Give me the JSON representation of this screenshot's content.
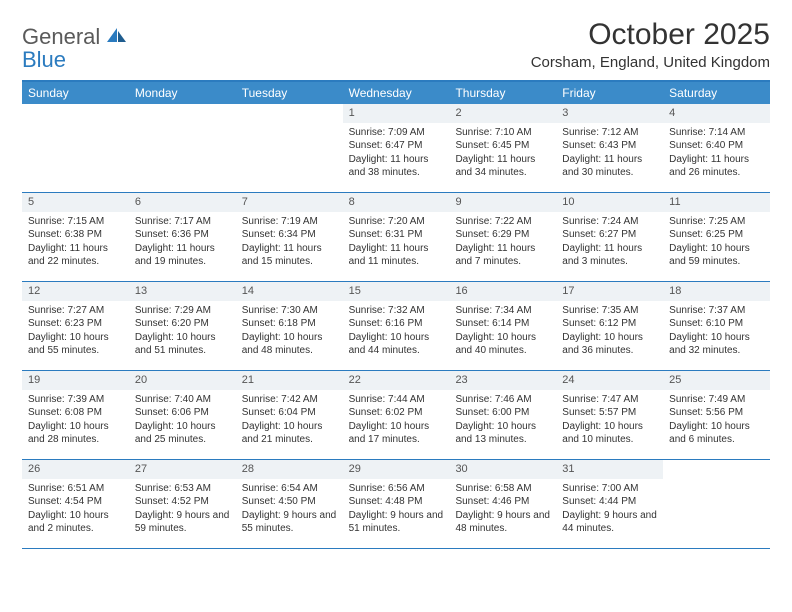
{
  "brand": {
    "part1": "General",
    "part2": "Blue"
  },
  "title": "October 2025",
  "location": "Corsham, England, United Kingdom",
  "colors": {
    "header_bar": "#3b8bc9",
    "rule": "#2b7bbf",
    "daynum_bg": "#eef2f5",
    "text": "#333333",
    "logo_gray": "#5a5a5a",
    "logo_blue": "#2b7bbf",
    "background": "#ffffff"
  },
  "typography": {
    "title_fontsize": 30,
    "location_fontsize": 15,
    "dow_fontsize": 12,
    "body_fontsize": 10,
    "daynum_fontsize": 11,
    "logo_fontsize": 22
  },
  "dow": [
    "Sunday",
    "Monday",
    "Tuesday",
    "Wednesday",
    "Thursday",
    "Friday",
    "Saturday"
  ],
  "weeks": [
    [
      {
        "num": "",
        "sunrise": "",
        "sunset": "",
        "daylight": ""
      },
      {
        "num": "",
        "sunrise": "",
        "sunset": "",
        "daylight": ""
      },
      {
        "num": "",
        "sunrise": "",
        "sunset": "",
        "daylight": ""
      },
      {
        "num": "1",
        "sunrise": "Sunrise: 7:09 AM",
        "sunset": "Sunset: 6:47 PM",
        "daylight": "Daylight: 11 hours and 38 minutes."
      },
      {
        "num": "2",
        "sunrise": "Sunrise: 7:10 AM",
        "sunset": "Sunset: 6:45 PM",
        "daylight": "Daylight: 11 hours and 34 minutes."
      },
      {
        "num": "3",
        "sunrise": "Sunrise: 7:12 AM",
        "sunset": "Sunset: 6:43 PM",
        "daylight": "Daylight: 11 hours and 30 minutes."
      },
      {
        "num": "4",
        "sunrise": "Sunrise: 7:14 AM",
        "sunset": "Sunset: 6:40 PM",
        "daylight": "Daylight: 11 hours and 26 minutes."
      }
    ],
    [
      {
        "num": "5",
        "sunrise": "Sunrise: 7:15 AM",
        "sunset": "Sunset: 6:38 PM",
        "daylight": "Daylight: 11 hours and 22 minutes."
      },
      {
        "num": "6",
        "sunrise": "Sunrise: 7:17 AM",
        "sunset": "Sunset: 6:36 PM",
        "daylight": "Daylight: 11 hours and 19 minutes."
      },
      {
        "num": "7",
        "sunrise": "Sunrise: 7:19 AM",
        "sunset": "Sunset: 6:34 PM",
        "daylight": "Daylight: 11 hours and 15 minutes."
      },
      {
        "num": "8",
        "sunrise": "Sunrise: 7:20 AM",
        "sunset": "Sunset: 6:31 PM",
        "daylight": "Daylight: 11 hours and 11 minutes."
      },
      {
        "num": "9",
        "sunrise": "Sunrise: 7:22 AM",
        "sunset": "Sunset: 6:29 PM",
        "daylight": "Daylight: 11 hours and 7 minutes."
      },
      {
        "num": "10",
        "sunrise": "Sunrise: 7:24 AM",
        "sunset": "Sunset: 6:27 PM",
        "daylight": "Daylight: 11 hours and 3 minutes."
      },
      {
        "num": "11",
        "sunrise": "Sunrise: 7:25 AM",
        "sunset": "Sunset: 6:25 PM",
        "daylight": "Daylight: 10 hours and 59 minutes."
      }
    ],
    [
      {
        "num": "12",
        "sunrise": "Sunrise: 7:27 AM",
        "sunset": "Sunset: 6:23 PM",
        "daylight": "Daylight: 10 hours and 55 minutes."
      },
      {
        "num": "13",
        "sunrise": "Sunrise: 7:29 AM",
        "sunset": "Sunset: 6:20 PM",
        "daylight": "Daylight: 10 hours and 51 minutes."
      },
      {
        "num": "14",
        "sunrise": "Sunrise: 7:30 AM",
        "sunset": "Sunset: 6:18 PM",
        "daylight": "Daylight: 10 hours and 48 minutes."
      },
      {
        "num": "15",
        "sunrise": "Sunrise: 7:32 AM",
        "sunset": "Sunset: 6:16 PM",
        "daylight": "Daylight: 10 hours and 44 minutes."
      },
      {
        "num": "16",
        "sunrise": "Sunrise: 7:34 AM",
        "sunset": "Sunset: 6:14 PM",
        "daylight": "Daylight: 10 hours and 40 minutes."
      },
      {
        "num": "17",
        "sunrise": "Sunrise: 7:35 AM",
        "sunset": "Sunset: 6:12 PM",
        "daylight": "Daylight: 10 hours and 36 minutes."
      },
      {
        "num": "18",
        "sunrise": "Sunrise: 7:37 AM",
        "sunset": "Sunset: 6:10 PM",
        "daylight": "Daylight: 10 hours and 32 minutes."
      }
    ],
    [
      {
        "num": "19",
        "sunrise": "Sunrise: 7:39 AM",
        "sunset": "Sunset: 6:08 PM",
        "daylight": "Daylight: 10 hours and 28 minutes."
      },
      {
        "num": "20",
        "sunrise": "Sunrise: 7:40 AM",
        "sunset": "Sunset: 6:06 PM",
        "daylight": "Daylight: 10 hours and 25 minutes."
      },
      {
        "num": "21",
        "sunrise": "Sunrise: 7:42 AM",
        "sunset": "Sunset: 6:04 PM",
        "daylight": "Daylight: 10 hours and 21 minutes."
      },
      {
        "num": "22",
        "sunrise": "Sunrise: 7:44 AM",
        "sunset": "Sunset: 6:02 PM",
        "daylight": "Daylight: 10 hours and 17 minutes."
      },
      {
        "num": "23",
        "sunrise": "Sunrise: 7:46 AM",
        "sunset": "Sunset: 6:00 PM",
        "daylight": "Daylight: 10 hours and 13 minutes."
      },
      {
        "num": "24",
        "sunrise": "Sunrise: 7:47 AM",
        "sunset": "Sunset: 5:57 PM",
        "daylight": "Daylight: 10 hours and 10 minutes."
      },
      {
        "num": "25",
        "sunrise": "Sunrise: 7:49 AM",
        "sunset": "Sunset: 5:56 PM",
        "daylight": "Daylight: 10 hours and 6 minutes."
      }
    ],
    [
      {
        "num": "26",
        "sunrise": "Sunrise: 6:51 AM",
        "sunset": "Sunset: 4:54 PM",
        "daylight": "Daylight: 10 hours and 2 minutes."
      },
      {
        "num": "27",
        "sunrise": "Sunrise: 6:53 AM",
        "sunset": "Sunset: 4:52 PM",
        "daylight": "Daylight: 9 hours and 59 minutes."
      },
      {
        "num": "28",
        "sunrise": "Sunrise: 6:54 AM",
        "sunset": "Sunset: 4:50 PM",
        "daylight": "Daylight: 9 hours and 55 minutes."
      },
      {
        "num": "29",
        "sunrise": "Sunrise: 6:56 AM",
        "sunset": "Sunset: 4:48 PM",
        "daylight": "Daylight: 9 hours and 51 minutes."
      },
      {
        "num": "30",
        "sunrise": "Sunrise: 6:58 AM",
        "sunset": "Sunset: 4:46 PM",
        "daylight": "Daylight: 9 hours and 48 minutes."
      },
      {
        "num": "31",
        "sunrise": "Sunrise: 7:00 AM",
        "sunset": "Sunset: 4:44 PM",
        "daylight": "Daylight: 9 hours and 44 minutes."
      },
      {
        "num": "",
        "sunrise": "",
        "sunset": "",
        "daylight": ""
      }
    ]
  ]
}
